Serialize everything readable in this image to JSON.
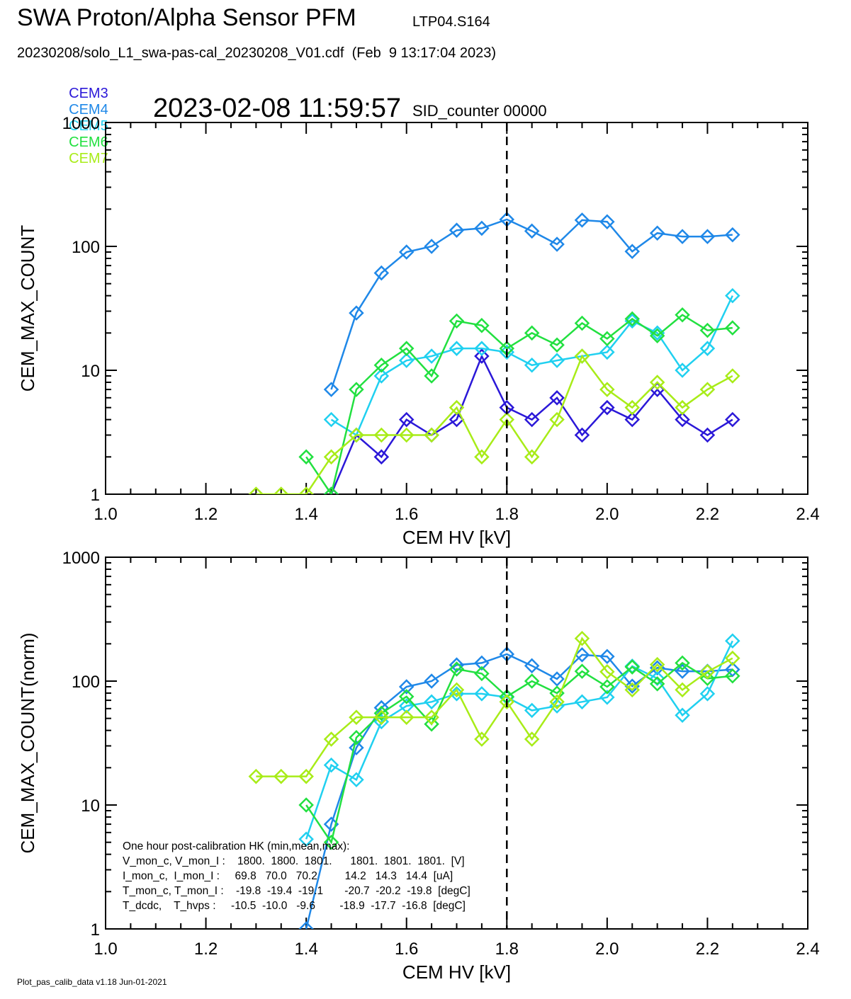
{
  "header": {
    "title": "SWA Proton/Alpha Sensor PFM",
    "subtitle_id": "LTP04.S164",
    "file_line": "20230208/solo_L1_swa-pas-cal_20230208_V01.cdf  (Feb  9 13:17:04 2023)",
    "timestamp": "2023-02-08 11:59:57",
    "sid_counter": "SID_counter 00000"
  },
  "legend": [
    {
      "name": "CEM3",
      "color": "#2b18d8"
    },
    {
      "name": "CEM4",
      "color": "#1f88e8"
    },
    {
      "name": "CEM5",
      "color": "#20d0f0"
    },
    {
      "name": "CEM6",
      "color": "#22e040"
    },
    {
      "name": "CEM7",
      "color": "#a8ec18"
    }
  ],
  "footer": "Plot_pas_calib_data v1.18 Jun-01-2021",
  "hk_box": {
    "title": "One hour post-calibration HK (min,mean,max):",
    "lines": [
      "V_mon_c, V_mon_I :    1800.  1800.  1801.      1801.  1801.  1801.  [V]",
      "I_mon_c,  I_mon_I :     69.8   70.0   70.2         14.2   14.3   14.4  [uA]",
      "T_mon_c, T_mon_I :    -19.8  -19.4  -19.1       -20.7  -20.2  -19.8  [degC]",
      "T_dcdc,    T_hvps :     -10.5  -10.0   -9.6        -18.9  -17.7  -16.8  [degC]"
    ]
  },
  "chart_data": [
    {
      "type": "line",
      "title": "",
      "xlabel": "CEM HV [kV]",
      "ylabel": "CEM_MAX_COUNT",
      "xlim": [
        1.0,
        2.4
      ],
      "ylim": [
        1,
        1000
      ],
      "yscale": "log",
      "xticks": [
        "1.0",
        "1.2",
        "1.4",
        "1.6",
        "1.8",
        "2.0",
        "2.2",
        "2.4"
      ],
      "yticks": [
        "1",
        "10",
        "100",
        "1000"
      ],
      "vline_x": 1.8,
      "marker": "diamond",
      "x": [
        1.3,
        1.35,
        1.4,
        1.45,
        1.5,
        1.55,
        1.6,
        1.65,
        1.7,
        1.75,
        1.8,
        1.85,
        1.9,
        1.95,
        2.0,
        2.05,
        2.1,
        2.15,
        2.2,
        2.25
      ],
      "series": [
        {
          "name": "CEM3",
          "values": [
            null,
            null,
            null,
            1,
            3,
            2,
            4,
            3,
            4,
            13,
            5,
            4,
            6,
            3,
            5,
            4,
            7,
            4,
            3,
            4
          ]
        },
        {
          "name": "CEM4",
          "values": [
            null,
            null,
            null,
            7,
            29,
            61,
            90,
            100,
            135,
            140,
            165,
            133,
            104,
            163,
            158,
            91,
            128,
            120,
            120,
            124
          ]
        },
        {
          "name": "CEM5",
          "values": [
            null,
            null,
            null,
            4,
            3,
            9,
            12,
            13,
            15,
            15,
            14,
            11,
            12,
            13,
            14,
            25,
            20,
            10,
            15,
            40
          ]
        },
        {
          "name": "CEM6",
          "values": [
            null,
            null,
            2,
            1,
            7,
            11,
            15,
            9,
            25,
            23,
            15,
            20,
            16,
            24,
            18,
            26,
            19,
            28,
            21,
            22
          ]
        },
        {
          "name": "CEM7",
          "values": [
            1,
            1,
            1,
            2,
            3,
            3,
            3,
            3,
            5,
            2,
            4,
            2,
            4,
            13,
            7,
            5,
            8,
            5,
            7,
            9
          ]
        }
      ]
    },
    {
      "type": "line",
      "title": "",
      "xlabel": "CEM HV [kV]",
      "ylabel": "CEM_MAX_COUNT(norm)",
      "xlim": [
        1.0,
        2.4
      ],
      "ylim": [
        1,
        1000
      ],
      "yscale": "log",
      "xticks": [
        "1.0",
        "1.2",
        "1.4",
        "1.6",
        "1.8",
        "2.0",
        "2.2",
        "2.4"
      ],
      "yticks": [
        "1",
        "10",
        "100",
        "1000"
      ],
      "vline_x": 1.8,
      "marker": "diamond",
      "x": [
        1.3,
        1.35,
        1.4,
        1.45,
        1.5,
        1.55,
        1.6,
        1.65,
        1.7,
        1.75,
        1.8,
        1.85,
        1.9,
        1.95,
        2.0,
        2.05,
        2.1,
        2.15,
        2.2,
        2.25
      ],
      "series": [
        {
          "name": "CEM3",
          "values": [
            null,
            null,
            null,
            null,
            null,
            null,
            null,
            null,
            null,
            null,
            null,
            null,
            null,
            null,
            null,
            null,
            null,
            null,
            null,
            null
          ]
        },
        {
          "name": "CEM4",
          "values": [
            null,
            null,
            1,
            7,
            29,
            61,
            90,
            100,
            135,
            140,
            165,
            133,
            104,
            163,
            158,
            91,
            128,
            120,
            120,
            124
          ]
        },
        {
          "name": "CEM5",
          "values": [
            null,
            null,
            5.3,
            21,
            16,
            47,
            63,
            68,
            79,
            79,
            74,
            58,
            63,
            68,
            74,
            132,
            105,
            53,
            79,
            211
          ]
        },
        {
          "name": "CEM6",
          "values": [
            null,
            null,
            10,
            5,
            35,
            55,
            75,
            45,
            125,
            115,
            75,
            100,
            80,
            120,
            90,
            130,
            95,
            140,
            105,
            110
          ]
        },
        {
          "name": "CEM7",
          "values": [
            17,
            17,
            17,
            34,
            51,
            51,
            51,
            51,
            85,
            34,
            68,
            34,
            68,
            221,
            119,
            85,
            136,
            85,
            119,
            153
          ]
        }
      ]
    }
  ]
}
